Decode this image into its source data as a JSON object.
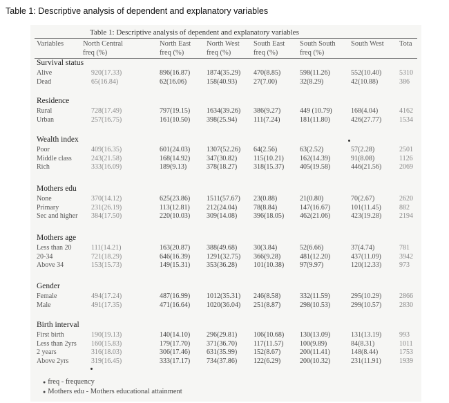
{
  "caption": "Table 1: Descriptive analysis of dependent and explanatory variables",
  "inner_title": "Table 1: Descriptive analysis of dependent and explanatory variables",
  "headers": {
    "variables": "Variables",
    "north_central": "North Central",
    "north_east": "North East",
    "north_west": "North West",
    "south_east": "South East",
    "south_south": "South South",
    "south_west": "South West",
    "total": "Tota",
    "sub": "freq (%)"
  },
  "groups": [
    {
      "title": "Survival status",
      "rows": [
        {
          "label": "Alive",
          "nc": "920(17.33)",
          "ne": "896(16.87)",
          "nw": "1874(35.29)",
          "se": "470(8.85)",
          "ss": "598(11.26)",
          "sw": "552(10.40)",
          "tot": "5310"
        },
        {
          "label": "Dead",
          "nc": "65(16.84)",
          "ne": "62(16.06)",
          "nw": "158(40.93)",
          "se": "27(7.00)",
          "ss": "32(8.29)",
          "sw": "42(10.88)",
          "tot": "386"
        }
      ]
    },
    {
      "title": "Residence",
      "rows": [
        {
          "label": "Rural",
          "nc": "728(17.49)",
          "ne": "797(19.15)",
          "nw": "1634(39.26)",
          "se": "386(9.27)",
          "ss": "449 (10.79)",
          "sw": "168(4.04)",
          "tot": "4162"
        },
        {
          "label": "Urban",
          "nc": "257(16.75)",
          "ne": "161(10.50)",
          "nw": "398(25.94)",
          "se": "111(7.24)",
          "ss": "181(11.80)",
          "sw": "426(27.77)",
          "tot": "1534"
        }
      ]
    },
    {
      "title": "Wealth index",
      "rows": [
        {
          "label": "Poor",
          "nc": "409(16.35)",
          "ne": "601(24.03)",
          "nw": "1307(52.26)",
          "se": "64(2.56)",
          "ss": "63(2.52)",
          "sw": "57(2.28)",
          "tot": "2501"
        },
        {
          "label": "Middle class",
          "nc": "243(21.58)",
          "ne": "168(14.92)",
          "nw": "347(30.82)",
          "se": "115(10.21)",
          "ss": "162(14.39)",
          "sw": "91(8.08)",
          "tot": "1126"
        },
        {
          "label": "Rich",
          "nc": "333(16.09)",
          "ne": "189(9.13)",
          "nw": "378(18.27)",
          "se": "318(15.37)",
          "ss": "405(19.58)",
          "sw": "446(21.56)",
          "tot": "2069"
        }
      ]
    },
    {
      "title": "Mothers edu",
      "rows": [
        {
          "label": "None",
          "nc": "370(14.12)",
          "ne": "625(23.86)",
          "nw": "1511(57.67)",
          "se": "23(0.88)",
          "ss": "21(0.80)",
          "sw": "70(2.67)",
          "tot": "2620"
        },
        {
          "label": "Primary",
          "nc": "231(26.19)",
          "ne": "113(12.81)",
          "nw": "212(24.04)",
          "se": "78(8.84)",
          "ss": "147(16.67)",
          "sw": "101(11.45)",
          "tot": "882"
        },
        {
          "label": "Sec and higher",
          "nc": "384(17.50)",
          "ne": "220(10.03)",
          "nw": "309(14.08)",
          "se": "396(18.05)",
          "ss": "462(21.06)",
          "sw": "423(19.28)",
          "tot": "2194"
        }
      ]
    },
    {
      "title": "Mothers age",
      "rows": [
        {
          "label": "Less than 20",
          "nc": "111(14.21)",
          "ne": "163(20.87)",
          "nw": "388(49.68)",
          "se": "30(3.84)",
          "ss": "52(6.66)",
          "sw": "37(4.74)",
          "tot": "781"
        },
        {
          "label": "20-34",
          "nc": "721(18.29)",
          "ne": "646(16.39)",
          "nw": "1291(32.75)",
          "se": "366(9.28)",
          "ss": "481(12.20)",
          "sw": "437(11.09)",
          "tot": "3942"
        },
        {
          "label": "Above 34",
          "nc": "153(15.73)",
          "ne": "149(15.31)",
          "nw": "353(36.28)",
          "se": "101(10.38)",
          "ss": "97(9.97)",
          "sw": "120(12.33)",
          "tot": "973"
        }
      ]
    },
    {
      "title": "Gender",
      "rows": [
        {
          "label": "Female",
          "nc": "494(17.24)",
          "ne": "487(16.99)",
          "nw": "1012(35.31)",
          "se": "246(8.58)",
          "ss": "332(11.59)",
          "sw": "295(10.29)",
          "tot": "2866"
        },
        {
          "label": "Male",
          "nc": "491(17.35)",
          "ne": "471(16.64)",
          "nw": "1020(36.04)",
          "se": "251(8.87)",
          "ss": "298(10.53)",
          "sw": "299(10.57)",
          "tot": "2830"
        }
      ]
    },
    {
      "title": "Birth interval",
      "rows": [
        {
          "label": "First birth",
          "nc": "190(19.13)",
          "ne": "140(14.10)",
          "nw": "296(29.81)",
          "se": "106(10.68)",
          "ss": "130(13.09)",
          "sw": "131(13.19)",
          "tot": "993"
        },
        {
          "label": "Less than 2yrs",
          "nc": "160(15.83)",
          "ne": "179(17.70)",
          "nw": "371(36.70)",
          "se": "117(11.57)",
          "ss": "100(9.89)",
          "sw": "84(8.31)",
          "tot": "1011"
        },
        {
          "label": "2 years",
          "nc": "316(18.03)",
          "ne": "306(17.46)",
          "nw": "631(35.99)",
          "se": "152(8.67)",
          "ss": "200(11.41)",
          "sw": "148(8.44)",
          "tot": "1753"
        },
        {
          "label": "Above 2yrs",
          "nc": "319(16.45)",
          "ne": "333(17.17)",
          "nw": "734(37.86)",
          "se": "122(6.29)",
          "ss": "200(10.32)",
          "sw": "231(11.91)",
          "tot": "1939"
        }
      ]
    }
  ],
  "notes": [
    "freq - frequency",
    "Mothers edu - Mothers educational attainment"
  ]
}
